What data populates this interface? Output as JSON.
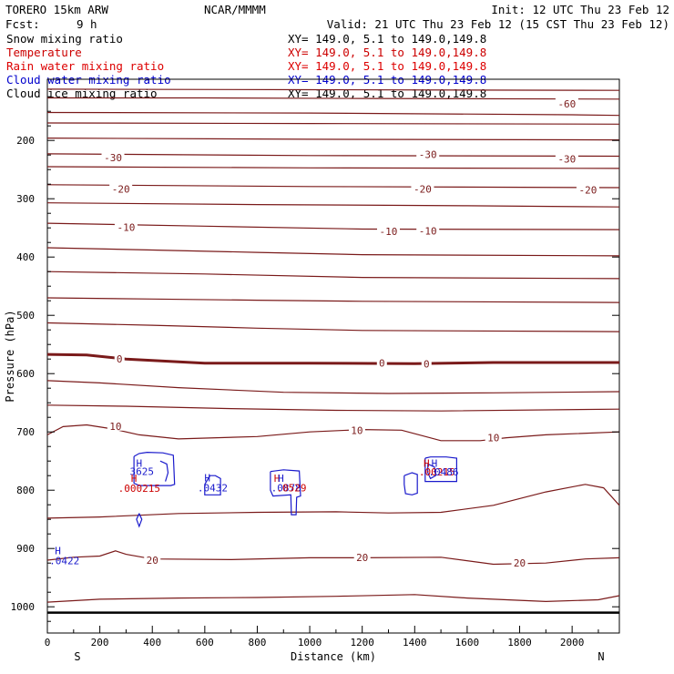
{
  "header": {
    "model": "TORERO  15km ARW",
    "org": "NCAR/MMMM",
    "init": "Init: 12 UTC Thu 23 Feb 12",
    "fcst_label": "Fcst:",
    "fcst_value": "9 h",
    "valid": "Valid: 21 UTC Thu 23 Feb 12 (15 CST Thu 23 Feb 12)"
  },
  "legend": [
    {
      "label": "Snow mixing ratio",
      "xy": "XY= 149.0,  5.1 to 149.0,149.8",
      "color": "#000000"
    },
    {
      "label": "Temperature",
      "xy": "XY= 149.0,  5.1 to 149.0,149.8",
      "color": "#cc0000"
    },
    {
      "label": "Rain water mixing ratio",
      "xy": "XY= 149.0,  5.1 to 149.0,149.8",
      "color": "#dd0000"
    },
    {
      "label": "Cloud water mixing ratio",
      "xy": "XY= 149.0,  5.1 to 149.0,149.8",
      "color": "#0000cc"
    },
    {
      "label": "Cloud ice mixing ratio",
      "xy": "XY= 149.0,  5.1 to 149.0,149.8",
      "color": "#000000"
    }
  ],
  "chart_data": {
    "type": "contour_cross_section",
    "xlabel": "Distance (km)",
    "ylabel": "Pressure (hPa)",
    "x_ticks": [
      "0",
      "200",
      "400",
      "600",
      "800",
      "1000",
      "1200",
      "1400",
      "1600",
      "1800",
      "2000"
    ],
    "y_ticks": [
      "200",
      "300",
      "400",
      "500",
      "600",
      "700",
      "800",
      "900",
      "1000"
    ],
    "xlim": [
      0,
      2180
    ],
    "ylim": [
      1045,
      95
    ],
    "end_labels": {
      "left": "S",
      "right": "N"
    },
    "ground_pressure": 1010,
    "isotherm_color": "#7a1a1a",
    "cloud_water_color": "#1a1acc",
    "rain_color": "#cc0000",
    "isotherms": [
      {
        "p": [
          [
            0,
            112
          ],
          [
            1000,
            113
          ],
          [
            2180,
            114
          ]
        ]
      },
      {
        "p": [
          [
            0,
            127
          ],
          [
            600,
            127
          ],
          [
            1200,
            128
          ],
          [
            2180,
            129
          ]
        ]
      },
      {
        "p": [
          [
            0,
            152
          ],
          [
            1000,
            153
          ],
          [
            2000,
            156
          ],
          [
            2180,
            157
          ]
        ]
      },
      {
        "p": [
          [
            0,
            170
          ],
          [
            1000,
            171
          ],
          [
            2180,
            172
          ]
        ]
      },
      {
        "p": [
          [
            0,
            196
          ],
          [
            1000,
            198
          ],
          [
            2180,
            199
          ]
        ]
      },
      {
        "p": [
          [
            0,
            223
          ],
          [
            1000,
            226
          ],
          [
            2180,
            227
          ]
        ]
      },
      {
        "p": [
          [
            0,
            245
          ],
          [
            1000,
            247
          ],
          [
            2180,
            248
          ]
        ]
      },
      {
        "p": [
          [
            0,
            276
          ],
          [
            1000,
            279
          ],
          [
            2180,
            281
          ]
        ]
      },
      {
        "p": [
          [
            0,
            307
          ],
          [
            800,
            310
          ],
          [
            1600,
            312
          ],
          [
            2180,
            314
          ]
        ]
      },
      {
        "p": [
          [
            0,
            342
          ],
          [
            600,
            347
          ],
          [
            1200,
            352
          ],
          [
            2180,
            353
          ]
        ]
      },
      {
        "p": [
          [
            0,
            384
          ],
          [
            400,
            388
          ],
          [
            800,
            392
          ],
          [
            1200,
            396
          ],
          [
            2180,
            398
          ]
        ]
      },
      {
        "p": [
          [
            0,
            425
          ],
          [
            600,
            429
          ],
          [
            1200,
            435
          ],
          [
            2180,
            437
          ]
        ]
      },
      {
        "p": [
          [
            0,
            470
          ],
          [
            400,
            472
          ],
          [
            800,
            474
          ],
          [
            1200,
            476
          ],
          [
            2180,
            478
          ]
        ]
      },
      {
        "p": [
          [
            0,
            513
          ],
          [
            400,
            517
          ],
          [
            800,
            522
          ],
          [
            1200,
            526
          ],
          [
            2180,
            528
          ]
        ]
      },
      {
        "p": [
          [
            0,
            567
          ],
          [
            150,
            568
          ],
          [
            300,
            575
          ],
          [
            600,
            582
          ],
          [
            1000,
            582
          ],
          [
            1400,
            583
          ],
          [
            1700,
            581
          ],
          [
            2180,
            581
          ]
        ],
        "bold": true
      },
      {
        "p": [
          [
            0,
            612
          ],
          [
            200,
            616
          ],
          [
            500,
            624
          ],
          [
            900,
            632
          ],
          [
            1300,
            634
          ],
          [
            1700,
            633
          ],
          [
            2180,
            631
          ]
        ]
      },
      {
        "p": [
          [
            0,
            654
          ],
          [
            300,
            656
          ],
          [
            700,
            660
          ],
          [
            1100,
            663
          ],
          [
            1500,
            664
          ],
          [
            2180,
            661
          ]
        ]
      },
      {
        "p": [
          [
            0,
            705
          ],
          [
            60,
            691
          ],
          [
            150,
            688
          ],
          [
            250,
            695
          ],
          [
            350,
            705
          ],
          [
            500,
            712
          ],
          [
            800,
            708
          ],
          [
            1000,
            700
          ],
          [
            1200,
            696
          ],
          [
            1350,
            697
          ],
          [
            1500,
            715
          ],
          [
            1650,
            715
          ],
          [
            1750,
            710
          ],
          [
            1900,
            705
          ],
          [
            2180,
            700
          ]
        ]
      },
      {
        "p": [
          [
            0,
            848
          ],
          [
            200,
            846
          ],
          [
            500,
            840
          ],
          [
            800,
            838
          ],
          [
            1100,
            837
          ],
          [
            1300,
            839
          ],
          [
            1500,
            838
          ],
          [
            1700,
            826
          ],
          [
            1900,
            803
          ],
          [
            2050,
            790
          ],
          [
            2120,
            796
          ],
          [
            2180,
            826
          ]
        ]
      },
      {
        "p": [
          [
            0,
            920
          ],
          [
            100,
            915
          ],
          [
            200,
            913
          ],
          [
            260,
            904
          ],
          [
            300,
            910
          ],
          [
            400,
            918
          ],
          [
            700,
            919
          ],
          [
            1000,
            916
          ],
          [
            1200,
            916
          ],
          [
            1500,
            915
          ],
          [
            1700,
            927
          ],
          [
            1900,
            925
          ],
          [
            2050,
            918
          ],
          [
            2180,
            916
          ]
        ]
      },
      {
        "p": [
          [
            0,
            992
          ],
          [
            200,
            987
          ],
          [
            500,
            985
          ],
          [
            800,
            984
          ],
          [
            1100,
            982
          ],
          [
            1400,
            979
          ],
          [
            1600,
            985
          ],
          [
            1900,
            991
          ],
          [
            2100,
            988
          ],
          [
            2180,
            981
          ]
        ]
      }
    ],
    "temp_labels": [
      {
        "x": 1980,
        "p": 137,
        "text": "-60"
      },
      {
        "x": 250,
        "p": 229,
        "text": "-30"
      },
      {
        "x": 1450,
        "p": 224,
        "text": "-30"
      },
      {
        "x": 1980,
        "p": 232,
        "text": "-30"
      },
      {
        "x": 280,
        "p": 283,
        "text": "-20"
      },
      {
        "x": 1430,
        "p": 283,
        "text": "-20"
      },
      {
        "x": 2060,
        "p": 285,
        "text": "-20"
      },
      {
        "x": 300,
        "p": 349,
        "text": "-10"
      },
      {
        "x": 1300,
        "p": 356,
        "text": "-10"
      },
      {
        "x": 1450,
        "p": 355,
        "text": "-10"
      },
      {
        "x": 275,
        "p": 575,
        "text": "0"
      },
      {
        "x": 1275,
        "p": 582,
        "text": "0"
      },
      {
        "x": 1445,
        "p": 583,
        "text": "0"
      },
      {
        "x": 260,
        "p": 690,
        "text": "10"
      },
      {
        "x": 1180,
        "p": 697,
        "text": "10"
      },
      {
        "x": 1700,
        "p": 710,
        "text": "10"
      },
      {
        "x": 400,
        "p": 920,
        "text": "20"
      },
      {
        "x": 1200,
        "p": 915,
        "text": "20"
      },
      {
        "x": 1800,
        "p": 925,
        "text": "20"
      }
    ],
    "cloud_water_contours": [
      {
        "p": [
          [
            330,
            742
          ],
          [
            350,
            737
          ],
          [
            380,
            735
          ],
          [
            440,
            736
          ],
          [
            480,
            740
          ],
          [
            485,
            790
          ],
          [
            470,
            792
          ],
          [
            350,
            792
          ],
          [
            330,
            788
          ],
          [
            330,
            742
          ]
        ]
      },
      {
        "p": [
          [
            430,
            750
          ],
          [
            455,
            755
          ],
          [
            460,
            770
          ],
          [
            450,
            785
          ]
        ]
      },
      {
        "p": [
          [
            600,
            790
          ],
          [
            620,
            775
          ],
          [
            640,
            775
          ],
          [
            660,
            780
          ],
          [
            660,
            808
          ],
          [
            600,
            808
          ],
          [
            600,
            790
          ]
        ]
      },
      {
        "p": [
          [
            850,
            768
          ],
          [
            900,
            765
          ],
          [
            960,
            767
          ],
          [
            965,
            810
          ],
          [
            950,
            812
          ],
          [
            948,
            842
          ],
          [
            930,
            842
          ],
          [
            928,
            808
          ],
          [
            860,
            810
          ],
          [
            850,
            800
          ],
          [
            850,
            768
          ]
        ]
      },
      {
        "p": [
          [
            1440,
            745
          ],
          [
            1460,
            743
          ],
          [
            1520,
            743
          ],
          [
            1560,
            745
          ],
          [
            1560,
            785
          ],
          [
            1440,
            785
          ],
          [
            1440,
            745
          ]
        ]
      },
      {
        "p": [
          [
            1360,
            775
          ],
          [
            1390,
            770
          ],
          [
            1410,
            773
          ],
          [
            1410,
            805
          ],
          [
            1390,
            808
          ],
          [
            1365,
            806
          ],
          [
            1360,
            790
          ],
          [
            1360,
            775
          ]
        ]
      },
      {
        "p": [
          [
            1450,
            755
          ],
          [
            1475,
            760
          ],
          [
            1480,
            775
          ],
          [
            1460,
            780
          ],
          [
            1450,
            770
          ],
          [
            1450,
            755
          ]
        ]
      },
      {
        "p": [
          [
            350,
            840
          ],
          [
            360,
            850
          ],
          [
            350,
            862
          ],
          [
            340,
            850
          ],
          [
            350,
            840
          ]
        ]
      }
    ],
    "cloud_water_labels": [
      {
        "x": 350,
        "p": 760,
        "text": "H",
        "color": "#1a1acc"
      },
      {
        "x": 360,
        "p": 774,
        "text": "3625",
        "color": "#1a1acc"
      },
      {
        "x": 610,
        "p": 785,
        "text": "H",
        "color": "#1a1acc"
      },
      {
        "x": 630,
        "p": 802,
        "text": ".0432",
        "color": "#1a1acc"
      },
      {
        "x": 1475,
        "p": 760,
        "text": "H",
        "color": "#1a1acc"
      },
      {
        "x": 40,
        "p": 910,
        "text": "H",
        "color": "#1a1acc"
      },
      {
        "x": 65,
        "p": 927,
        "text": ".0422",
        "color": "#1a1acc"
      }
    ],
    "rain_labels": [
      {
        "x": 330,
        "p": 786,
        "text": "H",
        "color": "#cc0000"
      },
      {
        "x": 350,
        "p": 803,
        "text": ".000215",
        "color": "#cc0000"
      },
      {
        "x": 875,
        "p": 786,
        "text": "H",
        "color": "#cc0000"
      },
      {
        "x": 890,
        "p": 786,
        "text": "H",
        "color": "#1a1acc"
      },
      {
        "x": 910,
        "p": 802,
        "text": ".0878",
        "color": "#1a1acc"
      },
      {
        "x": 930,
        "p": 802,
        "text": ".0529",
        "color": "#cc0000"
      },
      {
        "x": 1445,
        "p": 760,
        "text": "H",
        "color": "#cc0000"
      },
      {
        "x": 1485,
        "p": 775,
        "text": ".00215",
        "color": "#cc0000"
      },
      {
        "x": 1510,
        "p": 775,
        "text": ".0486",
        "color": "#1a1acc"
      }
    ]
  }
}
